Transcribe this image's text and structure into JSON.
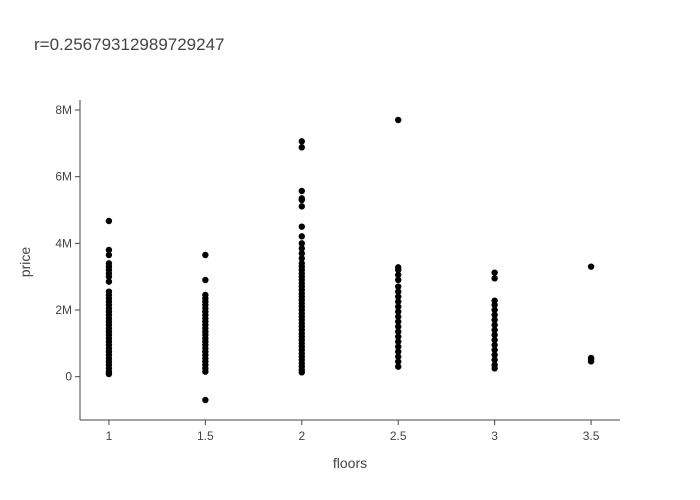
{
  "chart_data": {
    "type": "scatter",
    "title": "r=0.25679312989729247",
    "xlabel": "floors",
    "ylabel": "price",
    "x_ticks": [
      {
        "value": 1,
        "label": "1"
      },
      {
        "value": 1.5,
        "label": "1.5"
      },
      {
        "value": 2,
        "label": "2"
      },
      {
        "value": 2.5,
        "label": "2.5"
      },
      {
        "value": 3,
        "label": "3"
      },
      {
        "value": 3.5,
        "label": "3.5"
      }
    ],
    "y_ticks": [
      {
        "value": 0,
        "label": "0"
      },
      {
        "value": 2000000,
        "label": "2M"
      },
      {
        "value": 4000000,
        "label": "4M"
      },
      {
        "value": 6000000,
        "label": "6M"
      },
      {
        "value": 8000000,
        "label": "8M"
      }
    ],
    "xlim": [
      0.85,
      3.65
    ],
    "ylim": [
      -1300000,
      8300000
    ],
    "grid": false,
    "marker_color": "#000000",
    "points": [
      {
        "x": 1,
        "y": 4670000
      },
      {
        "x": 1,
        "y": 3800000
      },
      {
        "x": 1,
        "y": 3650000
      },
      {
        "x": 1,
        "y": 3400000
      },
      {
        "x": 1,
        "y": 3300000
      },
      {
        "x": 1,
        "y": 3200000
      },
      {
        "x": 1,
        "y": 3100000
      },
      {
        "x": 1,
        "y": 3000000
      },
      {
        "x": 1,
        "y": 2850000
      },
      {
        "x": 1,
        "y": 2550000
      },
      {
        "x": 1,
        "y": 2450000
      },
      {
        "x": 1,
        "y": 2350000
      },
      {
        "x": 1,
        "y": 2250000
      },
      {
        "x": 1,
        "y": 2150000
      },
      {
        "x": 1,
        "y": 2050000
      },
      {
        "x": 1,
        "y": 1950000
      },
      {
        "x": 1,
        "y": 1850000
      },
      {
        "x": 1,
        "y": 1750000
      },
      {
        "x": 1,
        "y": 1650000
      },
      {
        "x": 1,
        "y": 1550000
      },
      {
        "x": 1,
        "y": 1450000
      },
      {
        "x": 1,
        "y": 1350000
      },
      {
        "x": 1,
        "y": 1250000
      },
      {
        "x": 1,
        "y": 1150000
      },
      {
        "x": 1,
        "y": 1050000
      },
      {
        "x": 1,
        "y": 950000
      },
      {
        "x": 1,
        "y": 850000
      },
      {
        "x": 1,
        "y": 750000
      },
      {
        "x": 1,
        "y": 650000
      },
      {
        "x": 1,
        "y": 550000
      },
      {
        "x": 1,
        "y": 450000
      },
      {
        "x": 1,
        "y": 350000
      },
      {
        "x": 1,
        "y": 250000
      },
      {
        "x": 1,
        "y": 150000
      },
      {
        "x": 1,
        "y": 80000
      },
      {
        "x": 1.5,
        "y": 3650000
      },
      {
        "x": 1.5,
        "y": 2900000
      },
      {
        "x": 1.5,
        "y": 2450000
      },
      {
        "x": 1.5,
        "y": 2350000
      },
      {
        "x": 1.5,
        "y": 2250000
      },
      {
        "x": 1.5,
        "y": 2150000
      },
      {
        "x": 1.5,
        "y": 2050000
      },
      {
        "x": 1.5,
        "y": 1950000
      },
      {
        "x": 1.5,
        "y": 1850000
      },
      {
        "x": 1.5,
        "y": 1750000
      },
      {
        "x": 1.5,
        "y": 1650000
      },
      {
        "x": 1.5,
        "y": 1550000
      },
      {
        "x": 1.5,
        "y": 1450000
      },
      {
        "x": 1.5,
        "y": 1350000
      },
      {
        "x": 1.5,
        "y": 1250000
      },
      {
        "x": 1.5,
        "y": 1150000
      },
      {
        "x": 1.5,
        "y": 1050000
      },
      {
        "x": 1.5,
        "y": 950000
      },
      {
        "x": 1.5,
        "y": 850000
      },
      {
        "x": 1.5,
        "y": 750000
      },
      {
        "x": 1.5,
        "y": 650000
      },
      {
        "x": 1.5,
        "y": 550000
      },
      {
        "x": 1.5,
        "y": 450000
      },
      {
        "x": 1.5,
        "y": 350000
      },
      {
        "x": 1.5,
        "y": 250000
      },
      {
        "x": 1.5,
        "y": 150000
      },
      {
        "x": 1.5,
        "y": -700000
      },
      {
        "x": 2,
        "y": 7060000
      },
      {
        "x": 2,
        "y": 6880000
      },
      {
        "x": 2,
        "y": 5570000
      },
      {
        "x": 2,
        "y": 5350000
      },
      {
        "x": 2,
        "y": 5300000
      },
      {
        "x": 2,
        "y": 5110000
      },
      {
        "x": 2,
        "y": 4500000
      },
      {
        "x": 2,
        "y": 4210000
      },
      {
        "x": 2,
        "y": 4000000
      },
      {
        "x": 2,
        "y": 3850000
      },
      {
        "x": 2,
        "y": 3700000
      },
      {
        "x": 2,
        "y": 3550000
      },
      {
        "x": 2,
        "y": 3400000
      },
      {
        "x": 2,
        "y": 3300000
      },
      {
        "x": 2,
        "y": 3200000
      },
      {
        "x": 2,
        "y": 3100000
      },
      {
        "x": 2,
        "y": 3000000
      },
      {
        "x": 2,
        "y": 2900000
      },
      {
        "x": 2,
        "y": 2800000
      },
      {
        "x": 2,
        "y": 2700000
      },
      {
        "x": 2,
        "y": 2600000
      },
      {
        "x": 2,
        "y": 2500000
      },
      {
        "x": 2,
        "y": 2400000
      },
      {
        "x": 2,
        "y": 2300000
      },
      {
        "x": 2,
        "y": 2200000
      },
      {
        "x": 2,
        "y": 2100000
      },
      {
        "x": 2,
        "y": 2000000
      },
      {
        "x": 2,
        "y": 1900000
      },
      {
        "x": 2,
        "y": 1800000
      },
      {
        "x": 2,
        "y": 1700000
      },
      {
        "x": 2,
        "y": 1600000
      },
      {
        "x": 2,
        "y": 1500000
      },
      {
        "x": 2,
        "y": 1400000
      },
      {
        "x": 2,
        "y": 1300000
      },
      {
        "x": 2,
        "y": 1200000
      },
      {
        "x": 2,
        "y": 1100000
      },
      {
        "x": 2,
        "y": 1000000
      },
      {
        "x": 2,
        "y": 900000
      },
      {
        "x": 2,
        "y": 800000
      },
      {
        "x": 2,
        "y": 700000
      },
      {
        "x": 2,
        "y": 600000
      },
      {
        "x": 2,
        "y": 500000
      },
      {
        "x": 2,
        "y": 400000
      },
      {
        "x": 2,
        "y": 300000
      },
      {
        "x": 2,
        "y": 200000
      },
      {
        "x": 2,
        "y": 130000
      },
      {
        "x": 2.5,
        "y": 7700000
      },
      {
        "x": 2.5,
        "y": 3280000
      },
      {
        "x": 2.5,
        "y": 3200000
      },
      {
        "x": 2.5,
        "y": 3050000
      },
      {
        "x": 2.5,
        "y": 2900000
      },
      {
        "x": 2.5,
        "y": 2700000
      },
      {
        "x": 2.5,
        "y": 2550000
      },
      {
        "x": 2.5,
        "y": 2400000
      },
      {
        "x": 2.5,
        "y": 2250000
      },
      {
        "x": 2.5,
        "y": 2100000
      },
      {
        "x": 2.5,
        "y": 1950000
      },
      {
        "x": 2.5,
        "y": 1800000
      },
      {
        "x": 2.5,
        "y": 1650000
      },
      {
        "x": 2.5,
        "y": 1500000
      },
      {
        "x": 2.5,
        "y": 1350000
      },
      {
        "x": 2.5,
        "y": 1200000
      },
      {
        "x": 2.5,
        "y": 1050000
      },
      {
        "x": 2.5,
        "y": 900000
      },
      {
        "x": 2.5,
        "y": 750000
      },
      {
        "x": 2.5,
        "y": 600000
      },
      {
        "x": 2.5,
        "y": 450000
      },
      {
        "x": 2.5,
        "y": 300000
      },
      {
        "x": 3,
        "y": 3120000
      },
      {
        "x": 3,
        "y": 2950000
      },
      {
        "x": 3,
        "y": 2280000
      },
      {
        "x": 3,
        "y": 2150000
      },
      {
        "x": 3,
        "y": 2000000
      },
      {
        "x": 3,
        "y": 1850000
      },
      {
        "x": 3,
        "y": 1700000
      },
      {
        "x": 3,
        "y": 1550000
      },
      {
        "x": 3,
        "y": 1400000
      },
      {
        "x": 3,
        "y": 1250000
      },
      {
        "x": 3,
        "y": 1100000
      },
      {
        "x": 3,
        "y": 950000
      },
      {
        "x": 3,
        "y": 800000
      },
      {
        "x": 3,
        "y": 650000
      },
      {
        "x": 3,
        "y": 500000
      },
      {
        "x": 3,
        "y": 350000
      },
      {
        "x": 3,
        "y": 250000
      },
      {
        "x": 3.5,
        "y": 3300000
      },
      {
        "x": 3.5,
        "y": 560000
      },
      {
        "x": 3.5,
        "y": 510000
      },
      {
        "x": 3.5,
        "y": 460000
      }
    ]
  }
}
